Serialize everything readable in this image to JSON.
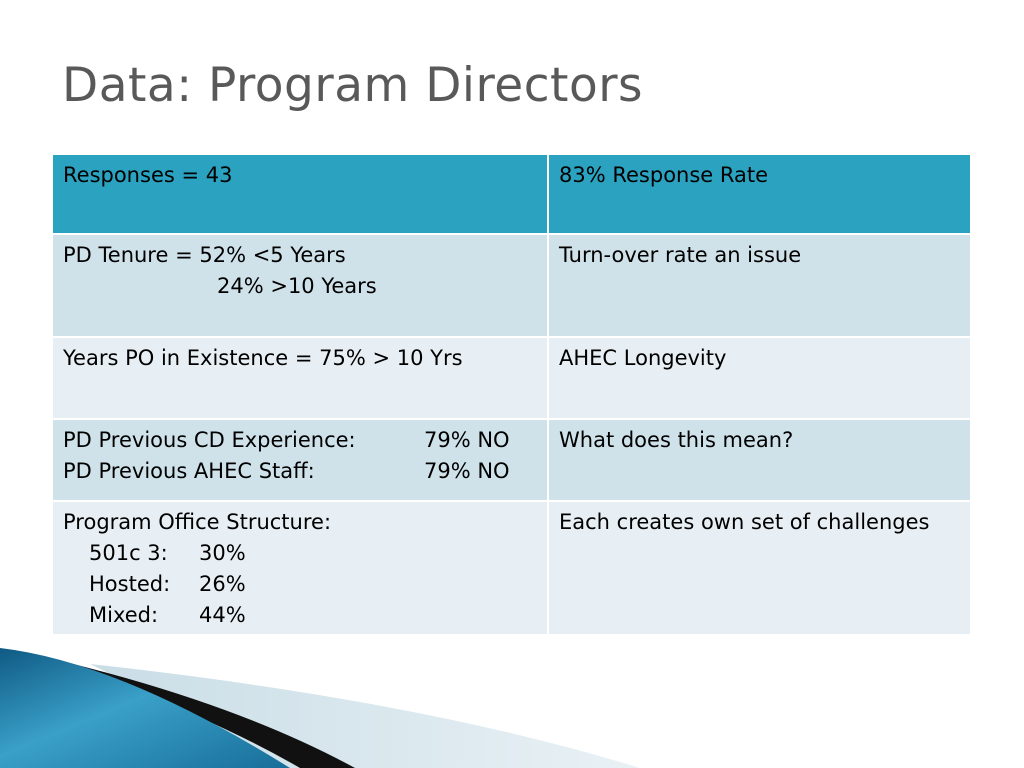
{
  "slide": {
    "title": "Data: Program Directors"
  },
  "table": {
    "header": {
      "left": "Responses = 43",
      "right": "83% Response Rate"
    },
    "tenure": {
      "label_line": "PD Tenure = 52% <5 Years",
      "second_line": "24% >10 Years",
      "note": "Turn-over rate an issue"
    },
    "existence": {
      "left": "Years PO in Existence = 75% > 10 Yrs",
      "note": "AHEC Longevity"
    },
    "experience": {
      "cd_label": "PD Previous CD Experience:",
      "cd_value": "79% NO",
      "staff_label": "PD Previous AHEC Staff:",
      "staff_value": "79% NO",
      "note": "What does this mean?"
    },
    "structure": {
      "heading": "Program Office Structure:",
      "items": [
        {
          "label": "501c 3:",
          "value": "30%"
        },
        {
          "label": "Hosted:",
          "value": "26%"
        },
        {
          "label": "Mixed:",
          "value": "44%"
        }
      ],
      "note": "Each creates own set of challenges"
    }
  },
  "colors": {
    "header_teal": "#2aa2c0",
    "band_dark": "#cfe2ea",
    "band_light": "#e8eff4",
    "title_gray": "#595959"
  }
}
